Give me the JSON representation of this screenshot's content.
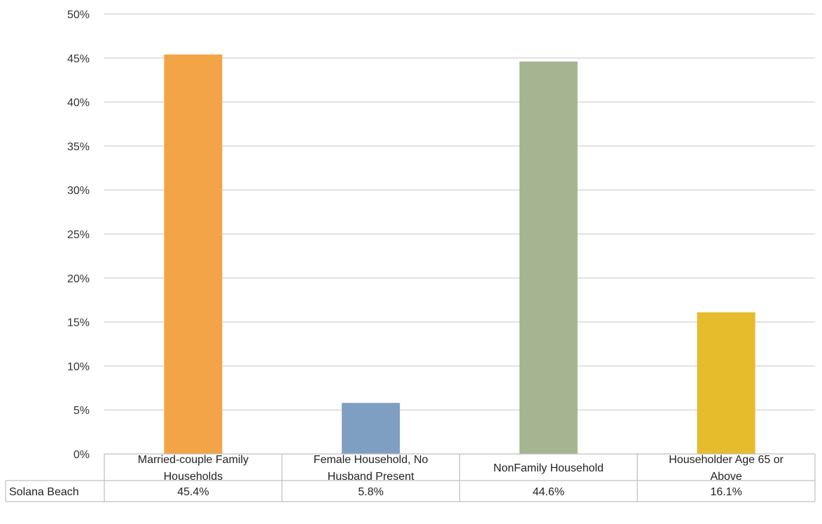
{
  "chart_data": {
    "type": "bar",
    "categories": [
      [
        "Married-couple Family",
        "Households"
      ],
      [
        "Female Household, No",
        "Husband Present"
      ],
      [
        "NonFamily Household"
      ],
      [
        "Householder Age 65 or",
        "Above"
      ]
    ],
    "series": [
      {
        "name": "Solana Beach",
        "values": [
          45.4,
          5.8,
          44.6,
          16.1
        ],
        "labels": [
          "45.4%",
          "5.8%",
          "44.6%",
          "16.1%"
        ]
      }
    ],
    "bar_colors": [
      "#f2a447",
      "#7f9fc2",
      "#a6b591",
      "#e6bb2c"
    ],
    "ylim": [
      0,
      50
    ],
    "yticks": [
      0,
      5,
      10,
      15,
      20,
      25,
      30,
      35,
      40,
      45,
      50
    ],
    "ytick_labels": [
      "0%",
      "5%",
      "10%",
      "15%",
      "20%",
      "25%",
      "30%",
      "35%",
      "40%",
      "45%",
      "50%"
    ],
    "grid": true,
    "data_table": true
  }
}
